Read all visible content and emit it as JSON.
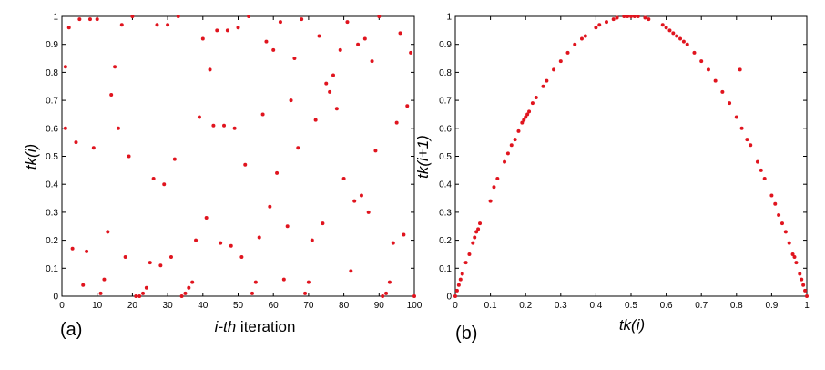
{
  "colors": {
    "point": "#e0141e",
    "axis": "#000000"
  },
  "chart_data": [
    {
      "type": "scatter",
      "panel_label": "(a)",
      "xlabel_italic": "i-th",
      "xlabel_rest": " iteration",
      "ylabel": "tk(i)",
      "xlim": [
        0,
        100
      ],
      "ylim": [
        0,
        1
      ],
      "xticks": [
        "0",
        "10",
        "20",
        "30",
        "40",
        "50",
        "60",
        "70",
        "80",
        "90",
        "100"
      ],
      "yticks": [
        "0",
        "0.1",
        "0.2",
        "0.3",
        "0.4",
        "0.5",
        "0.6",
        "0.7",
        "0.8",
        "0.9",
        "1"
      ],
      "grid": false,
      "x": [
        1,
        1,
        2,
        3,
        4,
        5,
        6,
        7,
        8,
        9,
        10,
        11,
        12,
        13,
        14,
        15,
        16,
        17,
        18,
        19,
        20,
        21,
        22,
        23,
        24,
        25,
        26,
        27,
        28,
        29,
        30,
        31,
        32,
        33,
        34,
        35,
        36,
        37,
        38,
        39,
        40,
        41,
        42,
        43,
        44,
        45,
        46,
        47,
        48,
        49,
        50,
        51,
        52,
        53,
        54,
        55,
        56,
        57,
        58,
        59,
        60,
        61,
        62,
        63,
        64,
        65,
        66,
        67,
        68,
        69,
        70,
        71,
        72,
        73,
        74,
        75,
        76,
        77,
        78,
        79,
        80,
        81,
        82,
        83,
        84,
        85,
        86,
        87,
        88,
        89,
        90,
        91,
        92,
        93,
        94,
        95,
        96,
        97,
        98,
        99,
        100
      ],
      "y": [
        0.82,
        0.6,
        0.96,
        0.17,
        0.55,
        0.99,
        0.04,
        0.16,
        0.99,
        0.53,
        0.99,
        0.01,
        0.06,
        0.23,
        0.72,
        0.82,
        0.6,
        0.97,
        0.14,
        0.5,
        1.0,
        0.0,
        0.0,
        0.01,
        0.03,
        0.12,
        0.42,
        0.97,
        0.11,
        0.4,
        0.97,
        0.14,
        0.49,
        1.0,
        0.0,
        0.01,
        0.03,
        0.05,
        0.2,
        0.64,
        0.92,
        0.28,
        0.81,
        0.61,
        0.95,
        0.19,
        0.61,
        0.95,
        0.18,
        0.6,
        0.96,
        0.14,
        0.47,
        1.0,
        0.01,
        0.05,
        0.21,
        0.65,
        0.91,
        0.32,
        0.88,
        0.44,
        0.98,
        0.06,
        0.25,
        0.7,
        0.85,
        0.53,
        0.99,
        0.01,
        0.05,
        0.2,
        0.63,
        0.93,
        0.26,
        0.76,
        0.73,
        0.79,
        0.67,
        0.88,
        0.42,
        0.98,
        0.09,
        0.34,
        0.9,
        0.36,
        0.92,
        0.3,
        0.84,
        0.52,
        1.0,
        0.0,
        0.01,
        0.05,
        0.19,
        0.62,
        0.94,
        0.22,
        0.68,
        0.87,
        0.0
      ]
    },
    {
      "type": "scatter",
      "panel_label": "(b)",
      "xlabel": "tk(i)",
      "ylabel": "tk(i+1)",
      "xlim": [
        0,
        1
      ],
      "ylim": [
        0,
        1
      ],
      "xticks": [
        "0",
        "0.1",
        "0.2",
        "0.3",
        "0.4",
        "0.5",
        "0.6",
        "0.7",
        "0.8",
        "0.9",
        "1"
      ],
      "yticks": [
        "0",
        "0.1",
        "0.2",
        "0.3",
        "0.4",
        "0.5",
        "0.6",
        "0.7",
        "0.8",
        "0.9",
        "1"
      ],
      "grid": false,
      "x": [
        0.0,
        0.005,
        0.01,
        0.015,
        0.02,
        0.03,
        0.04,
        0.05,
        0.055,
        0.06,
        0.065,
        0.07,
        0.1,
        0.11,
        0.12,
        0.14,
        0.15,
        0.16,
        0.17,
        0.18,
        0.19,
        0.195,
        0.2,
        0.205,
        0.21,
        0.22,
        0.23,
        0.25,
        0.26,
        0.28,
        0.3,
        0.32,
        0.34,
        0.36,
        0.37,
        0.4,
        0.41,
        0.43,
        0.45,
        0.46,
        0.48,
        0.49,
        0.5,
        0.51,
        0.52,
        0.54,
        0.55,
        0.59,
        0.6,
        0.61,
        0.62,
        0.63,
        0.64,
        0.65,
        0.66,
        0.68,
        0.7,
        0.72,
        0.74,
        0.76,
        0.78,
        0.8,
        0.81,
        0.815,
        0.83,
        0.84,
        0.86,
        0.87,
        0.88,
        0.9,
        0.91,
        0.92,
        0.93,
        0.94,
        0.95,
        0.96,
        0.965,
        0.97,
        0.98,
        0.985,
        0.99,
        0.995,
        1.0
      ],
      "y": [
        0.0,
        0.02,
        0.04,
        0.06,
        0.08,
        0.12,
        0.15,
        0.19,
        0.21,
        0.23,
        0.24,
        0.26,
        0.34,
        0.39,
        0.42,
        0.48,
        0.51,
        0.54,
        0.56,
        0.59,
        0.62,
        0.63,
        0.64,
        0.65,
        0.66,
        0.69,
        0.71,
        0.75,
        0.77,
        0.81,
        0.84,
        0.87,
        0.9,
        0.92,
        0.93,
        0.96,
        0.97,
        0.98,
        0.99,
        0.995,
        1.0,
        1.0,
        1.0,
        1.0,
        1.0,
        0.995,
        0.99,
        0.97,
        0.96,
        0.95,
        0.94,
        0.93,
        0.92,
        0.91,
        0.9,
        0.87,
        0.84,
        0.81,
        0.77,
        0.73,
        0.69,
        0.64,
        0.81,
        0.6,
        0.56,
        0.54,
        0.48,
        0.45,
        0.42,
        0.36,
        0.33,
        0.29,
        0.26,
        0.23,
        0.19,
        0.15,
        0.14,
        0.12,
        0.08,
        0.06,
        0.04,
        0.02,
        0.0
      ]
    }
  ]
}
